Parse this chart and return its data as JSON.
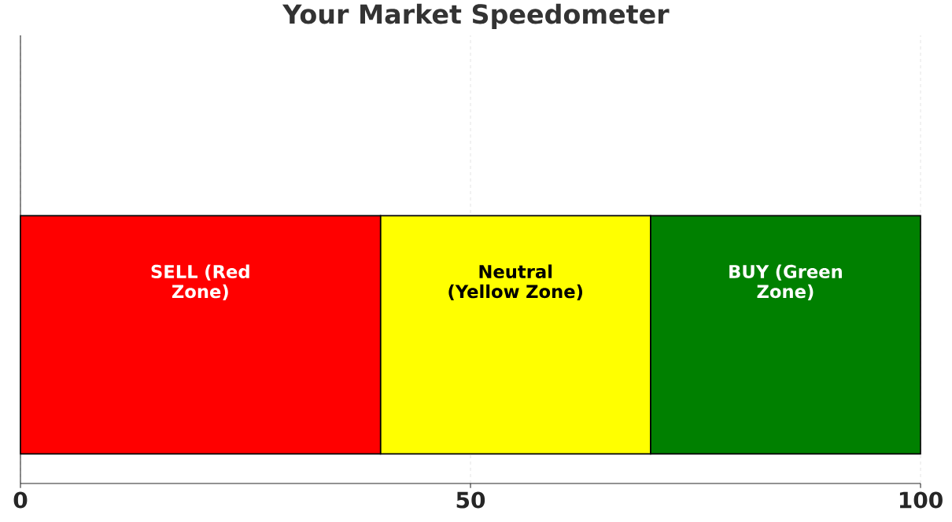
{
  "chart_data": {
    "type": "bar",
    "orientation": "horizontal",
    "stacked": true,
    "title": "Your Market Speedometer",
    "categories": [
      null
    ],
    "series": [
      {
        "name": "SELL (Red Zone)",
        "color": "#ff0000",
        "values": [
          40
        ]
      },
      {
        "name": "Neutral (Yellow Zone)",
        "color": "#ffff00",
        "values": [
          30
        ]
      },
      {
        "name": "BUY (Green Zone)",
        "color": "#008000",
        "values": [
          30
        ]
      }
    ],
    "xlim": [
      0,
      100
    ],
    "xticks": [
      0,
      50,
      100
    ],
    "grid": "x",
    "tick_labels": "x"
  }
}
